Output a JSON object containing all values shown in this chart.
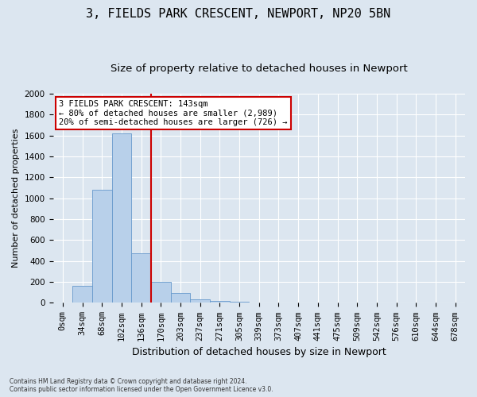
{
  "title_line1": "3, FIELDS PARK CRESCENT, NEWPORT, NP20 5BN",
  "title_line2": "Size of property relative to detached houses in Newport",
  "xlabel": "Distribution of detached houses by size in Newport",
  "ylabel": "Number of detached properties",
  "footnote": "Contains HM Land Registry data © Crown copyright and database right 2024.\nContains public sector information licensed under the Open Government Licence v3.0.",
  "bar_labels": [
    "0sqm",
    "34sqm",
    "68sqm",
    "102sqm",
    "136sqm",
    "170sqm",
    "203sqm",
    "237sqm",
    "271sqm",
    "305sqm",
    "339sqm",
    "373sqm",
    "407sqm",
    "441sqm",
    "475sqm",
    "509sqm",
    "542sqm",
    "576sqm",
    "610sqm",
    "644sqm",
    "678sqm"
  ],
  "bar_values": [
    0,
    160,
    1080,
    1620,
    470,
    200,
    98,
    35,
    22,
    12,
    3,
    0,
    0,
    0,
    0,
    0,
    0,
    0,
    0,
    0,
    0
  ],
  "bar_color": "#b8d0ea",
  "bar_edge_color": "#6699cc",
  "vline_color": "#cc0000",
  "vline_x": 4.5,
  "annotation_text": "3 FIELDS PARK CRESCENT: 143sqm\n← 80% of detached houses are smaller (2,989)\n20% of semi-detached houses are larger (726) →",
  "annotation_box_facecolor": "#ffffff",
  "annotation_box_edgecolor": "#cc0000",
  "ylim_max": 2000,
  "yticks": [
    0,
    200,
    400,
    600,
    800,
    1000,
    1200,
    1400,
    1600,
    1800,
    2000
  ],
  "bg_color": "#dce6f0",
  "grid_color": "#ffffff",
  "title_fontsize": 11,
  "subtitle_fontsize": 9.5,
  "ylabel_fontsize": 8,
  "xlabel_fontsize": 9,
  "tick_fontsize": 7.5,
  "annot_fontsize": 7.5
}
